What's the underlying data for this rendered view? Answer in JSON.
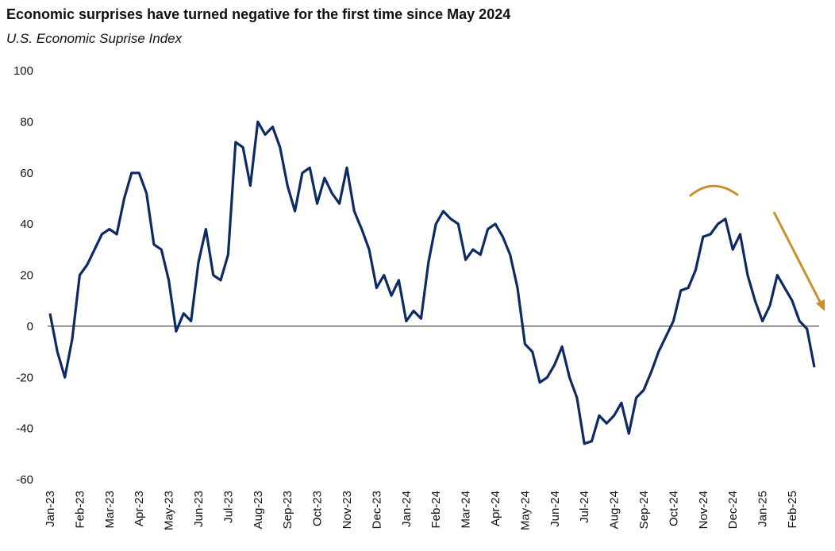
{
  "chart_data": {
    "type": "line",
    "title": "Economic surprises have turned negative for the first time since May 2024",
    "subtitle": "U.S. Economic Suprise Index",
    "categories": [
      "Jan-23",
      null,
      null,
      null,
      "Feb-23",
      null,
      null,
      null,
      "Mar-23",
      null,
      null,
      null,
      "Apr-23",
      null,
      null,
      null,
      "May-23",
      null,
      null,
      null,
      "Jun-23",
      null,
      null,
      null,
      "Jul-23",
      null,
      null,
      null,
      "Aug-23",
      null,
      null,
      null,
      "Sep-23",
      null,
      null,
      null,
      "Oct-23",
      null,
      null,
      null,
      "Nov-23",
      null,
      null,
      null,
      "Dec-23",
      null,
      null,
      null,
      "Jan-24",
      null,
      null,
      null,
      "Feb-24",
      null,
      null,
      null,
      "Mar-24",
      null,
      null,
      null,
      "Apr-24",
      null,
      null,
      null,
      "May-24",
      null,
      null,
      null,
      "Jun-24",
      null,
      null,
      null,
      "Jul-24",
      null,
      null,
      null,
      "Aug-24",
      null,
      null,
      null,
      "Sep-24",
      null,
      null,
      null,
      "Oct-24",
      null,
      null,
      null,
      "Nov-24",
      null,
      null,
      null,
      "Dec-24",
      null,
      null,
      null,
      "Jan-25",
      null,
      null,
      null,
      "Feb-25",
      null,
      null,
      null
    ],
    "series": [
      {
        "name": "U.S. Economic Suprise Index",
        "color": "#0f2a63",
        "values": [
          5,
          -10,
          -20,
          -5,
          20,
          24,
          30,
          36,
          38,
          36,
          50,
          60,
          60,
          52,
          32,
          30,
          18,
          -2,
          5,
          2,
          25,
          38,
          20,
          18,
          28,
          72,
          70,
          55,
          80,
          75,
          78,
          70,
          55,
          45,
          60,
          62,
          48,
          58,
          52,
          48,
          62,
          45,
          38,
          30,
          15,
          20,
          12,
          18,
          2,
          6,
          3,
          25,
          40,
          45,
          42,
          40,
          26,
          30,
          28,
          38,
          40,
          35,
          28,
          15,
          -7,
          -10,
          -22,
          -20,
          -15,
          -8,
          -20,
          -28,
          -46,
          -45,
          -35,
          -38,
          -35,
          -30,
          -42,
          -28,
          -25,
          -18,
          -10,
          -4,
          2,
          14,
          15,
          22,
          35,
          36,
          40,
          42,
          30,
          36,
          20,
          10,
          2,
          8,
          20,
          15,
          10,
          2,
          -1,
          -16
        ]
      }
    ],
    "ylim": [
      -60,
      100
    ],
    "yticks": [
      -60,
      -40,
      -20,
      0,
      20,
      40,
      60,
      80,
      100
    ]
  }
}
